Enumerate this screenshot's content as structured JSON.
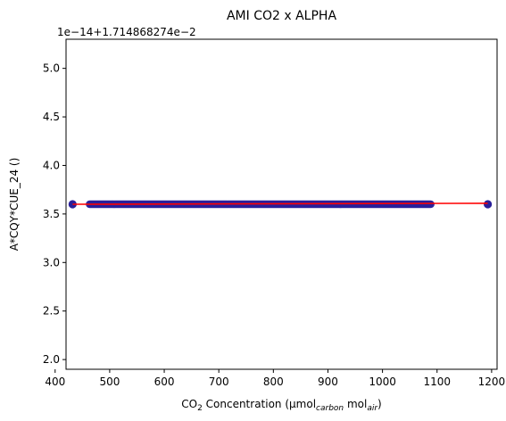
{
  "chart_data": {
    "type": "scatter",
    "title": "AMI CO2 x ALPHA",
    "xlabel_main": "CO",
    "xlabel_sub2": "2",
    "xlabel_rest": " Concentration (µmol",
    "xlabel_sub_carbon": "carbon",
    "xlabel_mol": " mol",
    "xlabel_sub_air": "air",
    "xlabel_close": ")",
    "ylabel": "A*CQY*CUE_24 ()",
    "y_offset_label": "1e−14+1.714868274e−2",
    "xlim": [
      420,
      1210
    ],
    "ylim": [
      1.9,
      5.3
    ],
    "x_ticks": [
      400,
      500,
      600,
      700,
      800,
      900,
      1000,
      1100,
      1200
    ],
    "x_tick_labels": [
      "400",
      "500",
      "600",
      "700",
      "800",
      "900",
      "1000",
      "1100",
      "1200"
    ],
    "y_ticks": [
      2.0,
      2.5,
      3.0,
      3.5,
      4.0,
      4.5,
      5.0
    ],
    "y_tick_labels": [
      "2.0",
      "2.5",
      "3.0",
      "3.5",
      "4.0",
      "4.5",
      "5.0"
    ],
    "series": [
      {
        "kind": "scatter",
        "color": "#2a1f9a",
        "x_range": [
          463,
          1090
        ],
        "y_value": 3.6,
        "outliers_x": [
          432,
          1193
        ]
      },
      {
        "kind": "fit-line",
        "color": "#ff0000",
        "x": [
          432,
          1193
        ],
        "y": [
          3.6,
          3.61
        ]
      }
    ],
    "grid": false
  }
}
